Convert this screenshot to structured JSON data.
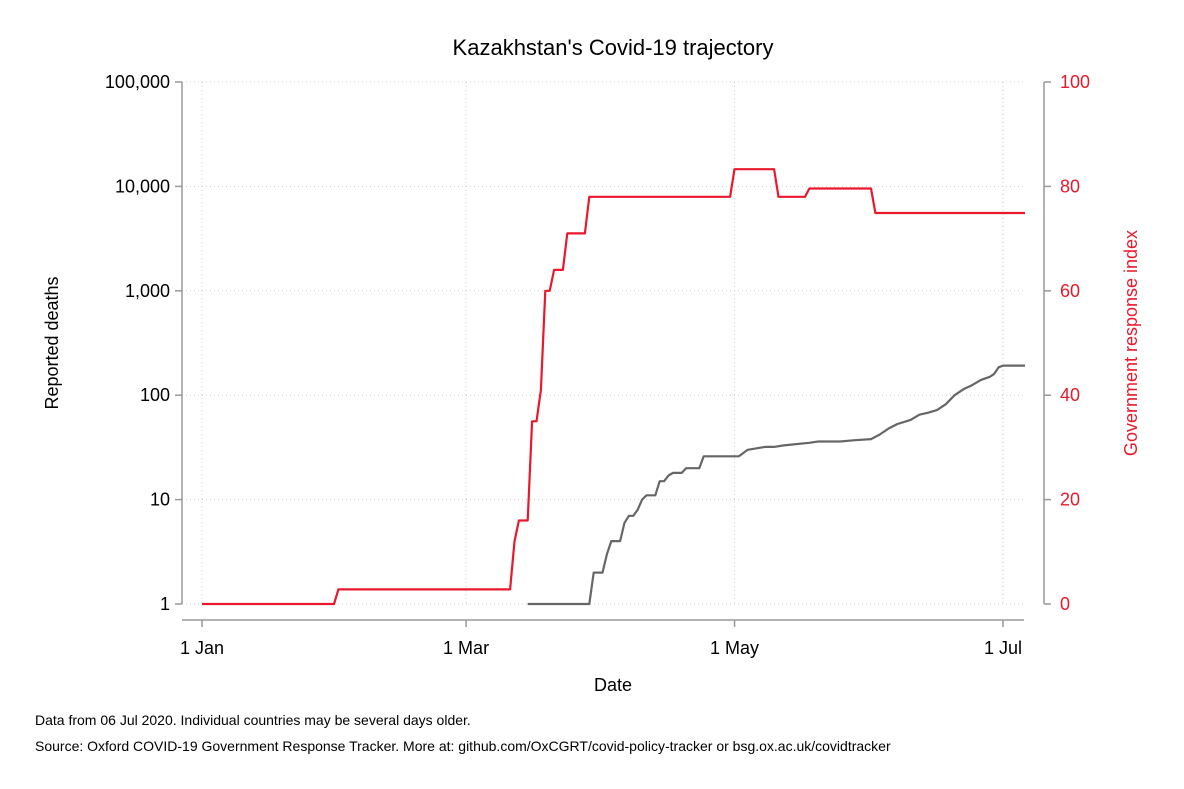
{
  "chart_data": {
    "type": "line",
    "title": "Kazakhstan's Covid-19 trajectory",
    "xlabel": "Date",
    "ylabel_left": "Reported deaths",
    "ylabel_right": "Government response index",
    "x_range": [
      "2020-01-01",
      "2020-07-06"
    ],
    "x_ticks": [
      {
        "date": "2020-01-01",
        "label": "1 Jan"
      },
      {
        "date": "2020-03-01",
        "label": "1 Mar"
      },
      {
        "date": "2020-05-01",
        "label": "1 May"
      },
      {
        "date": "2020-07-01",
        "label": "1 Jul"
      }
    ],
    "y_left": {
      "scale": "log",
      "range": [
        1,
        100000
      ],
      "ticks": [
        {
          "value": 1,
          "label": "1"
        },
        {
          "value": 10,
          "label": "10"
        },
        {
          "value": 100,
          "label": "100"
        },
        {
          "value": 1000,
          "label": "1,000"
        },
        {
          "value": 10000,
          "label": "10,000"
        },
        {
          "value": 100000,
          "label": "100,000"
        }
      ]
    },
    "y_right": {
      "scale": "linear",
      "range": [
        0,
        100
      ],
      "ticks": [
        {
          "value": 0,
          "label": "0"
        },
        {
          "value": 20,
          "label": "20"
        },
        {
          "value": 40,
          "label": "40"
        },
        {
          "value": 60,
          "label": "60"
        },
        {
          "value": 80,
          "label": "80"
        },
        {
          "value": 100,
          "label": "100"
        }
      ]
    },
    "grid": true,
    "series": [
      {
        "axis": "right",
        "color": "#e8192c",
        "points": [
          [
            "2020-01-01",
            0
          ],
          [
            "2020-01-31",
            0
          ],
          [
            "2020-02-01",
            2.8
          ],
          [
            "2020-03-11",
            2.8
          ],
          [
            "2020-03-12",
            12
          ],
          [
            "2020-03-13",
            16
          ],
          [
            "2020-03-15",
            16
          ],
          [
            "2020-03-16",
            35
          ],
          [
            "2020-03-17",
            35
          ],
          [
            "2020-03-18",
            41
          ],
          [
            "2020-03-19",
            60
          ],
          [
            "2020-03-20",
            60
          ],
          [
            "2020-03-21",
            64
          ],
          [
            "2020-03-22",
            64
          ],
          [
            "2020-03-23",
            64
          ],
          [
            "2020-03-24",
            71
          ],
          [
            "2020-03-28",
            71
          ],
          [
            "2020-03-29",
            78
          ],
          [
            "2020-04-30",
            78
          ],
          [
            "2020-05-01",
            83.3
          ],
          [
            "2020-05-10",
            83.3
          ],
          [
            "2020-05-11",
            78
          ],
          [
            "2020-05-17",
            78
          ],
          [
            "2020-05-18",
            79.6
          ],
          [
            "2020-06-01",
            79.6
          ],
          [
            "2020-06-02",
            74.9
          ],
          [
            "2020-07-06",
            74.9
          ]
        ]
      },
      {
        "axis": "left",
        "color": "#666666",
        "points": [
          [
            "2020-03-15",
            1
          ],
          [
            "2020-03-29",
            1
          ],
          [
            "2020-03-30",
            2
          ],
          [
            "2020-04-01",
            2
          ],
          [
            "2020-04-02",
            3
          ],
          [
            "2020-04-03",
            4
          ],
          [
            "2020-04-05",
            4
          ],
          [
            "2020-04-06",
            6
          ],
          [
            "2020-04-07",
            7
          ],
          [
            "2020-04-08",
            7
          ],
          [
            "2020-04-09",
            8
          ],
          [
            "2020-04-10",
            10
          ],
          [
            "2020-04-11",
            11
          ],
          [
            "2020-04-13",
            11
          ],
          [
            "2020-04-14",
            15
          ],
          [
            "2020-04-15",
            15
          ],
          [
            "2020-04-16",
            17
          ],
          [
            "2020-04-17",
            18
          ],
          [
            "2020-04-19",
            18
          ],
          [
            "2020-04-20",
            20
          ],
          [
            "2020-04-23",
            20
          ],
          [
            "2020-04-24",
            26
          ],
          [
            "2020-05-02",
            26
          ],
          [
            "2020-05-04",
            30
          ],
          [
            "2020-05-06",
            31
          ],
          [
            "2020-05-08",
            32
          ],
          [
            "2020-05-10",
            32
          ],
          [
            "2020-05-12",
            33
          ],
          [
            "2020-05-15",
            34
          ],
          [
            "2020-05-18",
            35
          ],
          [
            "2020-05-20",
            36
          ],
          [
            "2020-05-25",
            36
          ],
          [
            "2020-05-28",
            37
          ],
          [
            "2020-06-01",
            38
          ],
          [
            "2020-06-03",
            42
          ],
          [
            "2020-06-05",
            48
          ],
          [
            "2020-06-07",
            53
          ],
          [
            "2020-06-10",
            58
          ],
          [
            "2020-06-12",
            65
          ],
          [
            "2020-06-14",
            68
          ],
          [
            "2020-06-16",
            72
          ],
          [
            "2020-06-18",
            82
          ],
          [
            "2020-06-20",
            100
          ],
          [
            "2020-06-22",
            114
          ],
          [
            "2020-06-24",
            125
          ],
          [
            "2020-06-26",
            140
          ],
          [
            "2020-06-28",
            150
          ],
          [
            "2020-06-29",
            160
          ],
          [
            "2020-06-30",
            185
          ],
          [
            "2020-07-01",
            192
          ],
          [
            "2020-07-06",
            192
          ]
        ]
      }
    ]
  },
  "footnotes": {
    "data_note": "Data from 06 Jul 2020. Individual countries may be several days older.",
    "source": "Source: Oxford COVID-19 Government Response Tracker. More at: github.com/OxCGRT/covid-policy-tracker or bsg.ox.ac.uk/covidtracker"
  }
}
